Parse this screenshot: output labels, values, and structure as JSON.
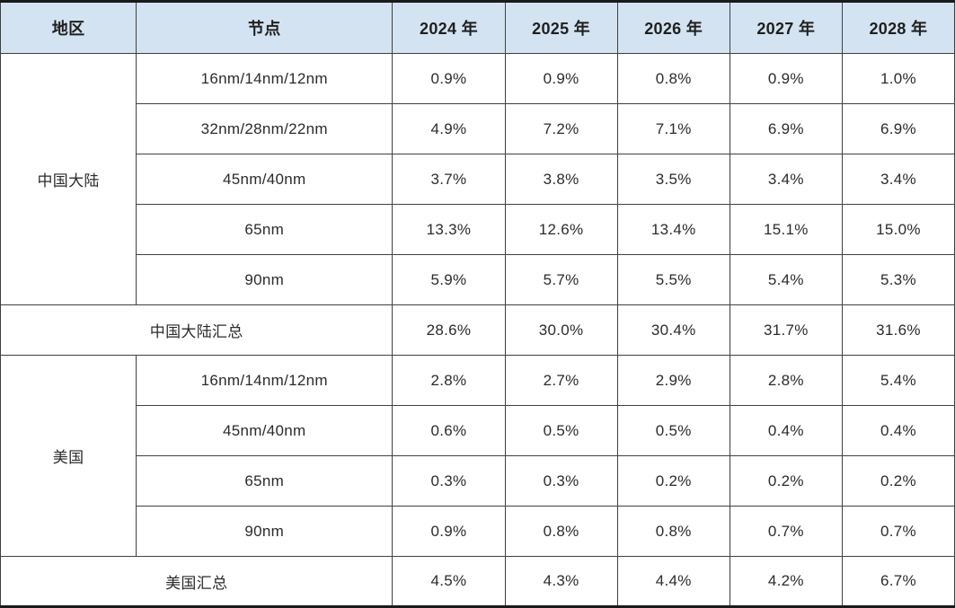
{
  "colors": {
    "header_background": "#d4e3f1",
    "grid_border": "#404040",
    "outer_border": "#1a1a1a",
    "text": "#2b2b2b",
    "cell_background": "#ffffff"
  },
  "chart_data": {
    "type": "table",
    "title": "",
    "columns": [
      "地区",
      "节点",
      "2024 年",
      "2025 年",
      "2026 年",
      "2027 年",
      "2028 年"
    ],
    "sections": [
      {
        "region": "中国大陆",
        "rows": [
          {
            "node": "16nm/14nm/12nm",
            "values": [
              "0.9%",
              "0.9%",
              "0.8%",
              "0.9%",
              "1.0%"
            ]
          },
          {
            "node": "32nm/28nm/22nm",
            "values": [
              "4.9%",
              "7.2%",
              "7.1%",
              "6.9%",
              "6.9%"
            ]
          },
          {
            "node": "45nm/40nm",
            "values": [
              "3.7%",
              "3.8%",
              "3.5%",
              "3.4%",
              "3.4%"
            ]
          },
          {
            "node": "65nm",
            "values": [
              "13.3%",
              "12.6%",
              "13.4%",
              "15.1%",
              "15.0%"
            ]
          },
          {
            "node": "90nm",
            "values": [
              "5.9%",
              "5.7%",
              "5.5%",
              "5.4%",
              "5.3%"
            ]
          }
        ],
        "summary": {
          "label": "中国大陆汇总",
          "values": [
            "28.6%",
            "30.0%",
            "30.4%",
            "31.7%",
            "31.6%"
          ]
        }
      },
      {
        "region": "美国",
        "rows": [
          {
            "node": "16nm/14nm/12nm",
            "values": [
              "2.8%",
              "2.7%",
              "2.9%",
              "2.8%",
              "5.4%"
            ]
          },
          {
            "node": "45nm/40nm",
            "values": [
              "0.6%",
              "0.5%",
              "0.5%",
              "0.4%",
              "0.4%"
            ]
          },
          {
            "node": "65nm",
            "values": [
              "0.3%",
              "0.3%",
              "0.2%",
              "0.2%",
              "0.2%"
            ]
          },
          {
            "node": "90nm",
            "values": [
              "0.9%",
              "0.8%",
              "0.8%",
              "0.7%",
              "0.7%"
            ]
          }
        ],
        "summary": {
          "label": "美国汇总",
          "values": [
            "4.5%",
            "4.3%",
            "4.4%",
            "4.2%",
            "6.7%"
          ]
        }
      }
    ]
  }
}
